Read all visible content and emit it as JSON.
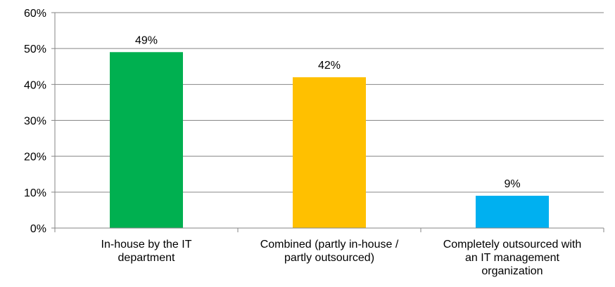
{
  "chart_data": {
    "type": "bar",
    "categories": [
      [
        "In-house by the IT",
        "department"
      ],
      [
        "Combined (partly in-house /",
        "partly outsourced)"
      ],
      [
        "Completely outsourced with",
        "an IT management",
        "organization"
      ]
    ],
    "values": [
      49,
      42,
      9
    ],
    "data_labels": [
      "49%",
      "42%",
      "9%"
    ],
    "colors": [
      "#00b050",
      "#ffc000",
      "#00b0f0"
    ],
    "ylim": [
      0,
      60
    ],
    "yticks": [
      0,
      10,
      20,
      30,
      40,
      50,
      60
    ],
    "ytick_labels": [
      "0%",
      "10%",
      "20%",
      "30%",
      "40%",
      "50%",
      "60%"
    ],
    "grid": true,
    "title": "",
    "xlabel": "",
    "ylabel": "",
    "legend": "none"
  }
}
